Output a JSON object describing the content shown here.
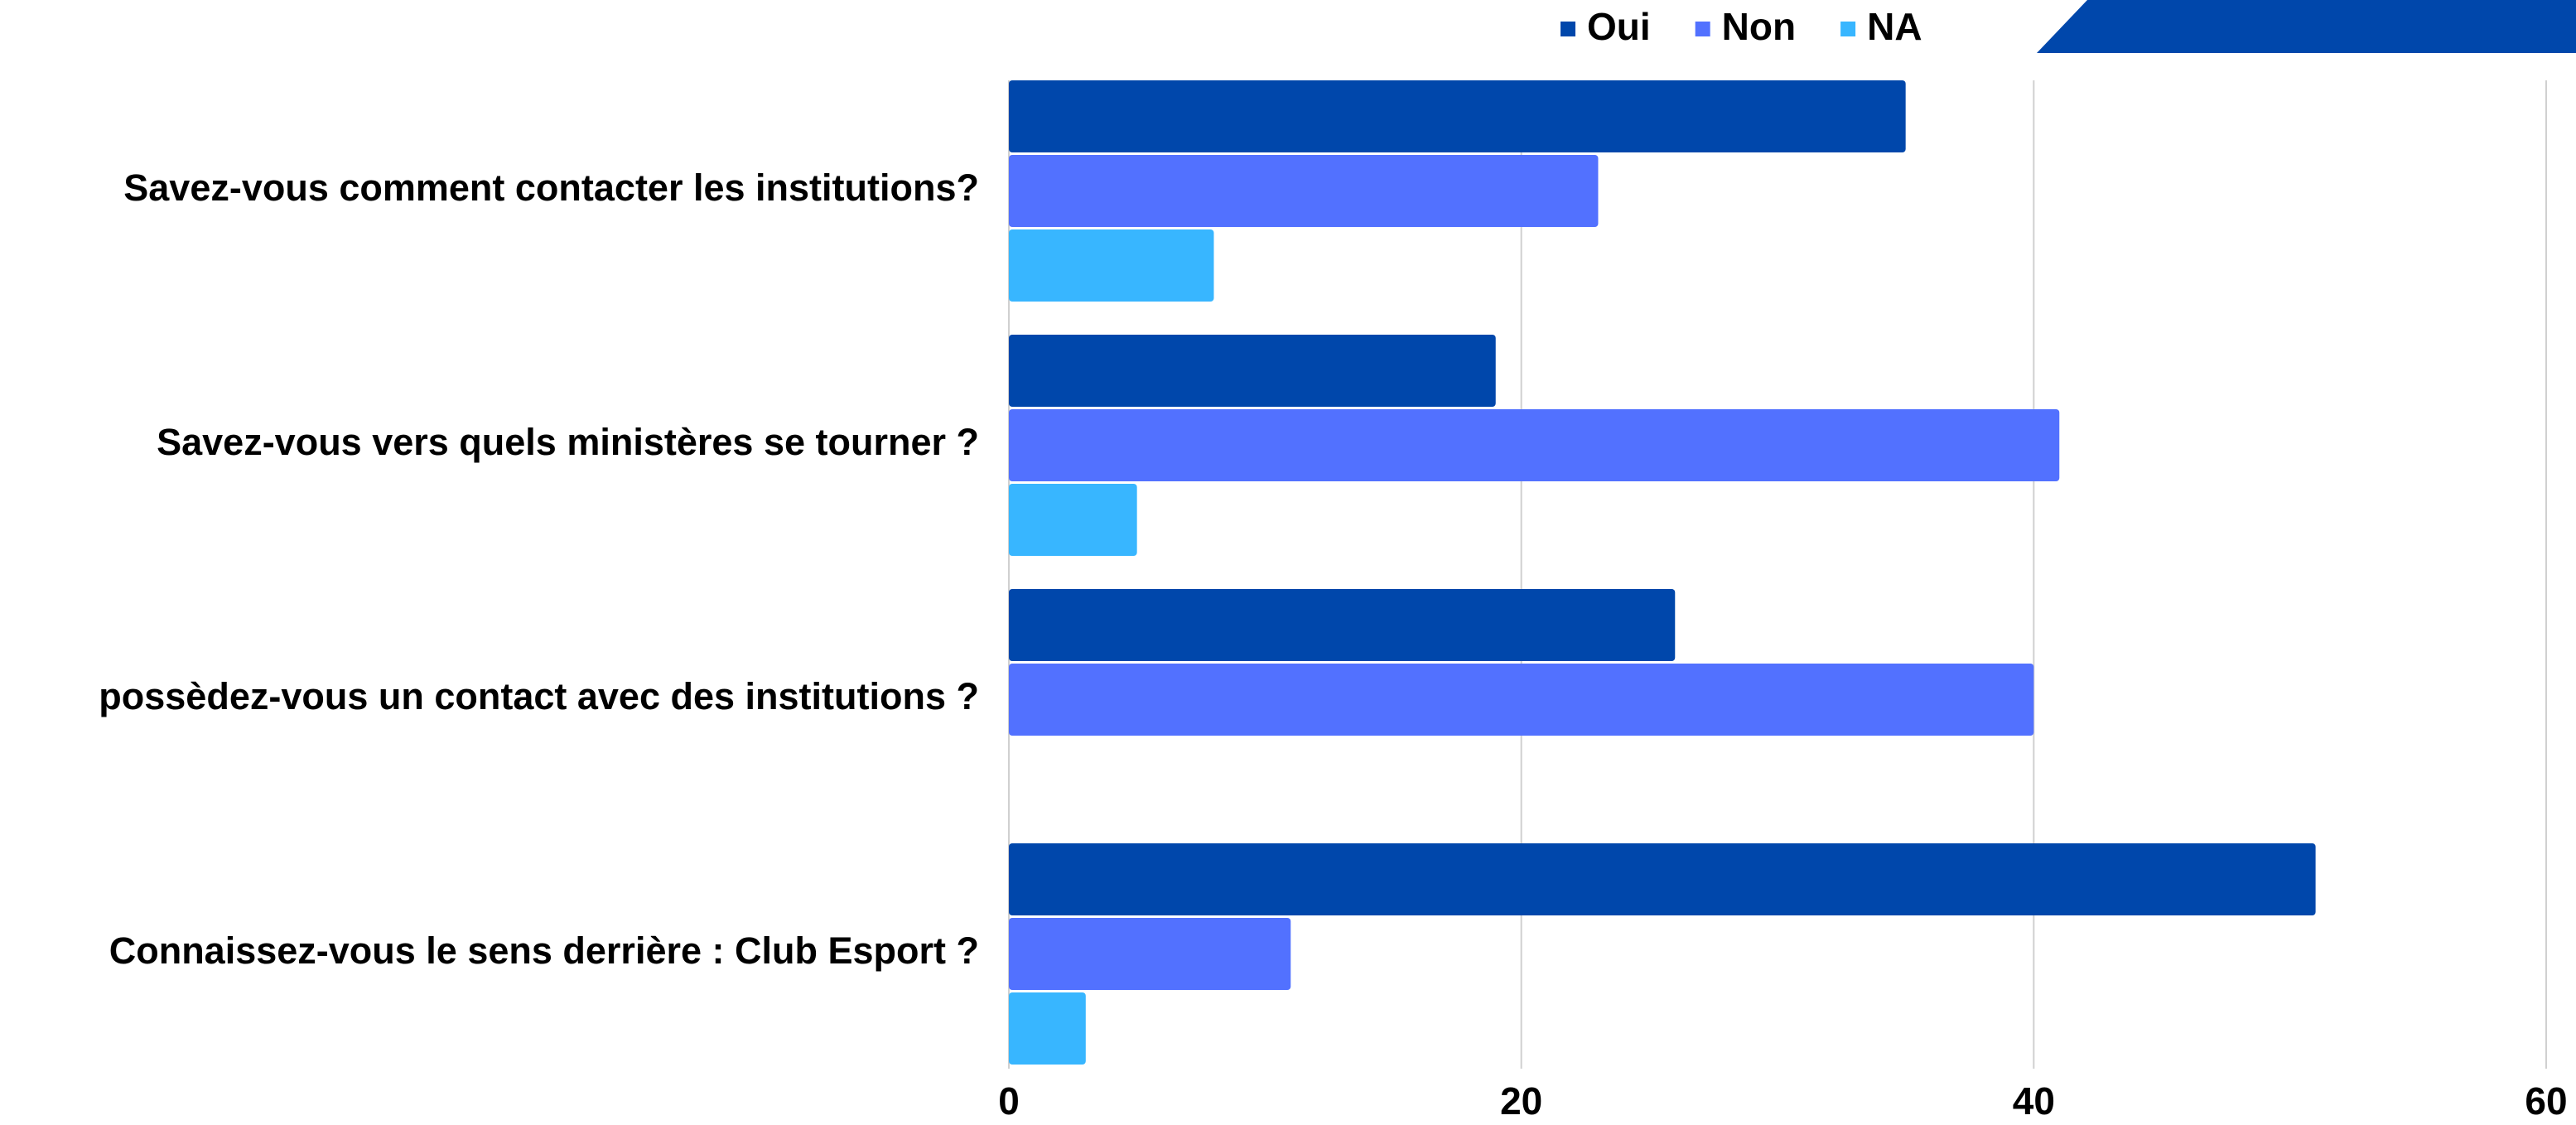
{
  "chart_data": {
    "type": "bar",
    "orientation": "horizontal",
    "categories": [
      "Savez-vous comment contacter les institutions?",
      "Savez-vous vers quels ministères se tourner ?",
      "possèdez-vous un contact avec des institutions ?",
      "Connaissez-vous le sens derrière : Club Esport ?"
    ],
    "series": [
      {
        "name": "Oui",
        "color": "#0047ab",
        "values": [
          35,
          19,
          26,
          51
        ]
      },
      {
        "name": "Non",
        "color": "#5271ff",
        "values": [
          23,
          41,
          40,
          11
        ]
      },
      {
        "name": "NA",
        "color": "#38b6ff",
        "values": [
          8,
          5,
          0,
          3
        ]
      }
    ],
    "xlim": [
      0,
      60
    ],
    "xticks": [
      0,
      20,
      40,
      60
    ],
    "grid": true,
    "legend": "top"
  }
}
